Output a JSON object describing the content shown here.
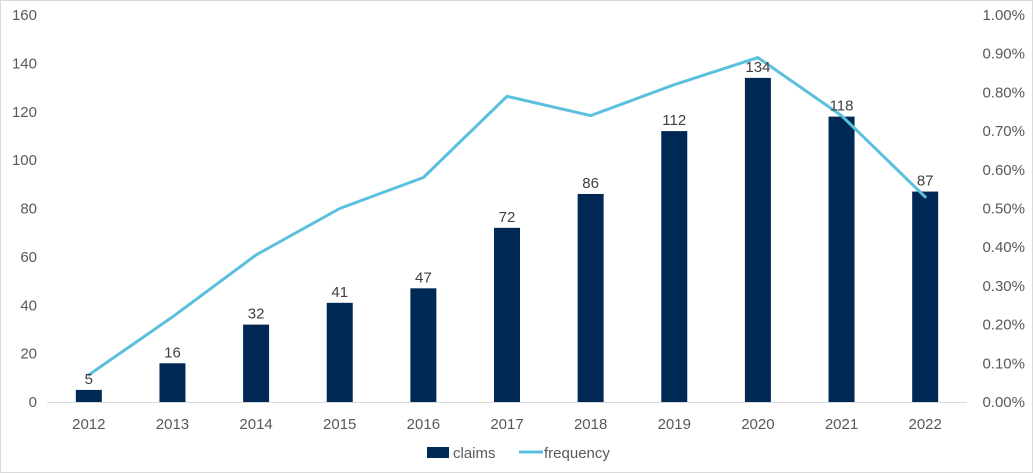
{
  "chart_data": {
    "type": "bar",
    "title": "",
    "xlabel": "",
    "ylabel": "",
    "categories": [
      "2012",
      "2013",
      "2014",
      "2015",
      "2016",
      "2017",
      "2018",
      "2019",
      "2020",
      "2021",
      "2022"
    ],
    "series": [
      {
        "name": "claims",
        "type": "bar",
        "axis": "left",
        "color": "#002855",
        "values": [
          5,
          16,
          32,
          41,
          47,
          72,
          86,
          112,
          134,
          118,
          87
        ],
        "data_labels": [
          "5",
          "16",
          "32",
          "41",
          "47",
          "72",
          "86",
          "112",
          "134",
          "118",
          "87"
        ]
      },
      {
        "name": "frequency",
        "type": "line",
        "axis": "right",
        "color": "#5bc0de",
        "values": [
          0.0007,
          0.0022,
          0.0038,
          0.005,
          0.0058,
          0.0079,
          0.0074,
          0.0082,
          0.0089,
          0.0074,
          0.0053
        ]
      }
    ],
    "ylim": [
      0,
      160
    ],
    "y2lim": [
      0,
      0.01
    ],
    "y_ticks": [
      "0",
      "20",
      "40",
      "60",
      "80",
      "100",
      "120",
      "140",
      "160"
    ],
    "y2_ticks": [
      "0.00%",
      "0.10%",
      "0.20%",
      "0.30%",
      "0.40%",
      "0.50%",
      "0.60%",
      "0.70%",
      "0.80%",
      "0.90%",
      "1.00%"
    ],
    "grid": false,
    "legend_position": "bottom"
  }
}
